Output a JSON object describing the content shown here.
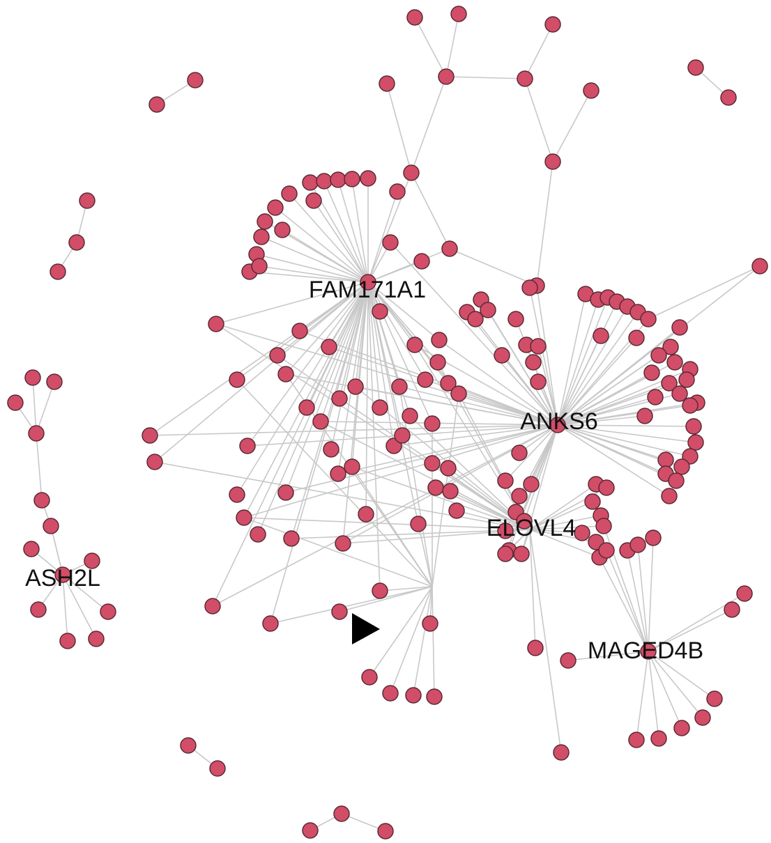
{
  "labels": [
    "FAM171A1",
    "ANKS6",
    "ELOVL4",
    "ASH2L",
    "MAGED4B"
  ]
}
